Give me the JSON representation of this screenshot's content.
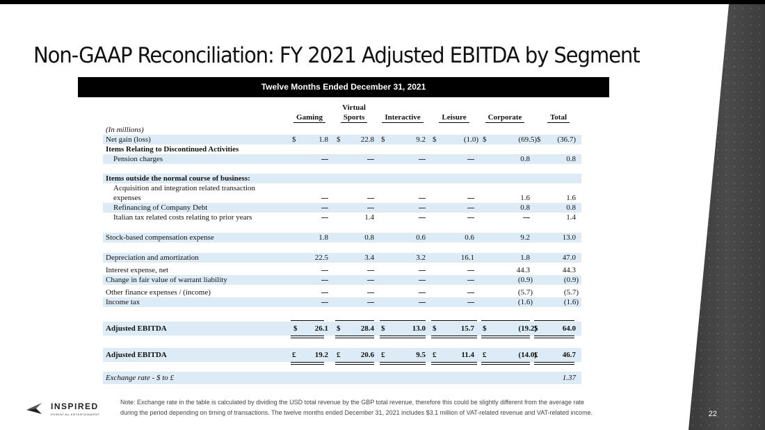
{
  "title": "Non-GAAP Reconciliation: FY 2021 Adjusted EBITDA by Segment",
  "header_bar": "Twelve Months Ended December 31, 2021",
  "columns": [
    "Gaming",
    "Virtual Sports",
    "Interactive",
    "Leisure",
    "Corporate",
    "Total"
  ],
  "column_head_top": {
    "virtual": "Virtual",
    "virtual2": "Sports"
  },
  "units_label": "(In millions)",
  "rows": {
    "net_gain": {
      "label": "Net gain (loss)",
      "values": [
        "1.8",
        "22.8",
        "9.2",
        "(1.0)",
        "(69.5)",
        "(36.7)"
      ]
    },
    "disc_ops": {
      "label": "Items Relating to Discontinued Activities"
    },
    "pension": {
      "label": "Pension charges",
      "values": [
        "—",
        "—",
        "—",
        "—",
        "0.8",
        "0.8"
      ]
    },
    "outside": {
      "label": "Items outside the normal course of business:"
    },
    "acq_line1": {
      "label": "Acquisition and integration related transaction"
    },
    "acq_line2": {
      "label": "expenses",
      "values": [
        "—",
        "—",
        "—",
        "—",
        "1.6",
        "1.6"
      ]
    },
    "refi": {
      "label": "Refinancing of Company Debt",
      "values": [
        "—",
        "—",
        "—",
        "—",
        "0.8",
        "0.8"
      ]
    },
    "italian": {
      "label": "Italian tax related costs relating to prior years",
      "values": [
        "—",
        "1.4",
        "—",
        "—",
        "—",
        "1.4"
      ]
    },
    "sbc": {
      "label": "Stock-based compensation expense",
      "values": [
        "1.8",
        "0.8",
        "0.6",
        "0.6",
        "9.2",
        "13.0"
      ]
    },
    "dna": {
      "label": "Depreciation and amortization",
      "values": [
        "22.5",
        "3.4",
        "3.2",
        "16.1",
        "1.8",
        "47.0"
      ]
    },
    "interest": {
      "label": "Interest expense, net",
      "values": [
        "—",
        "—",
        "—",
        "—",
        "44.3",
        "44.3"
      ]
    },
    "warrant": {
      "label": "Change in fair value of warrant liability",
      "values": [
        "—",
        "—",
        "—",
        "—",
        "(0.9)",
        "(0.9)"
      ]
    },
    "other_fin": {
      "label": "Other finance expenses / (income)",
      "values": [
        "—",
        "—",
        "—",
        "—",
        "(5.7)",
        "(5.7)"
      ]
    },
    "income_tax": {
      "label": "Income tax",
      "values": [
        "—",
        "—",
        "—",
        "—",
        "(1.6)",
        "(1.6)"
      ]
    },
    "adj_usd": {
      "label": "Adjusted EBITDA",
      "values": [
        "26.1",
        "28.4",
        "13.0",
        "15.7",
        "(19.2)",
        "64.0"
      ]
    },
    "adj_gbp": {
      "label": "Adjusted EBITDA",
      "values": [
        "19.2",
        "20.6",
        "9.5",
        "11.4",
        "(14.0)",
        "46.7"
      ]
    },
    "fx": {
      "label": "Exchange rate - $ to £",
      "value": "1.37"
    }
  },
  "currency_usd": "$",
  "currency_gbp": "£",
  "note": "Note: Exchange rate in the table is calculated by dividing the USD total revenue by the GBP total revenue, therefore this could be slightly different from the average rate during the period depending on timing of transactions. The twelve months ended December 31, 2021 includes $3.1 million of VAT-related revenue and VAT-related income.",
  "logo": {
    "name": "INSPIRED",
    "tagline": "ESSENTIAL ENTERTAINMENT"
  },
  "page_number": "22"
}
